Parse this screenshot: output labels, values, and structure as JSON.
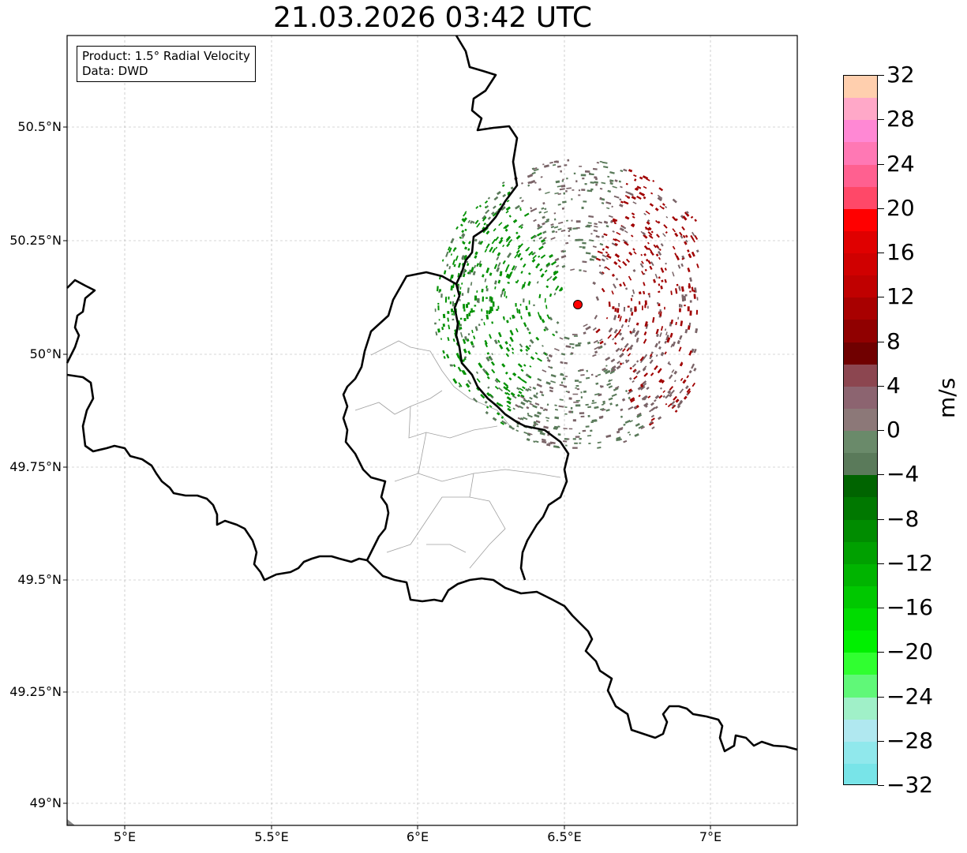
{
  "title": "21.03.2026 03:42 UTC",
  "info": {
    "product": "Product: 1.5° Radial Velocity",
    "source": "Data: DWD"
  },
  "map": {
    "lon_range": [
      4.8,
      7.3
    ],
    "lat_range": [
      48.95,
      50.7
    ],
    "x_ticks": [
      "5°E",
      "5.5°E",
      "6°E",
      "6.5°E",
      "7°E"
    ],
    "y_ticks": [
      "50.5°N",
      "50.25°N",
      "50°N",
      "49.75°N",
      "49.5°N",
      "49.25°N",
      "49°N"
    ],
    "gridlines": true,
    "radar_site": {
      "lon": 6.55,
      "lat": 50.11,
      "color": "#ff0000"
    }
  },
  "colorbar": {
    "unit": "m/s",
    "min": -32,
    "max": 32,
    "tick_labels": [
      "32",
      "28",
      "24",
      "20",
      "16",
      "12",
      "8",
      "4",
      "0",
      "−4",
      "−8",
      "−12",
      "−16",
      "−20",
      "−24",
      "−28",
      "−32"
    ],
    "colors_top_to_bottom": [
      "#ffcfae",
      "#ffa8c8",
      "#ff88d4",
      "#ff78b4",
      "#ff6090",
      "#ff4868",
      "#ff0000",
      "#e00000",
      "#d00000",
      "#c00000",
      "#a80000",
      "#900000",
      "#700000",
      "#8c4650",
      "#8c6470",
      "#8c7878",
      "#6a8a6a",
      "#5a7a5a",
      "#006400",
      "#007800",
      "#008c00",
      "#00a000",
      "#00b400",
      "#00c800",
      "#00dc00",
      "#00f000",
      "#30ff30",
      "#60f878",
      "#a0f0c8",
      "#b0e8f0",
      "#90e8ec",
      "#78e4e8"
    ]
  },
  "velocity_colors": {
    "strong_inbound": "#009000",
    "weak_inbound": "#5a7a5a",
    "near_zero": "#7a6468",
    "outbound": "#a00000"
  }
}
